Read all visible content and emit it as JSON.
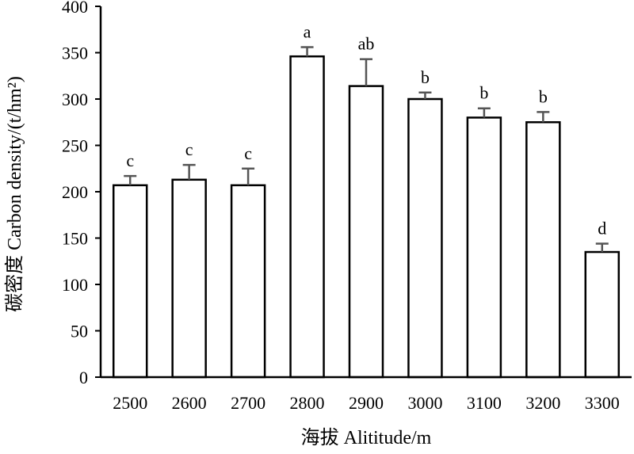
{
  "chart_data": {
    "type": "bar",
    "categories": [
      "2500",
      "2600",
      "2700",
      "2800",
      "2900",
      "3000",
      "3100",
      "3200",
      "3300"
    ],
    "values": [
      207,
      213,
      207,
      346,
      314,
      300,
      280,
      275,
      135
    ],
    "error": [
      10,
      16,
      18,
      10,
      29,
      7,
      10,
      11,
      9
    ],
    "significance_labels": [
      "c",
      "c",
      "c",
      "a",
      "ab",
      "b",
      "b",
      "b",
      "d"
    ],
    "xlabel": "海拔 Alititude/m",
    "ylabel": "碳密度 Carbon density/(t/hm²)",
    "ylim": [
      0,
      400
    ],
    "yticks": [
      0,
      50,
      100,
      150,
      200,
      250,
      300,
      350,
      400
    ],
    "grid": false
  }
}
